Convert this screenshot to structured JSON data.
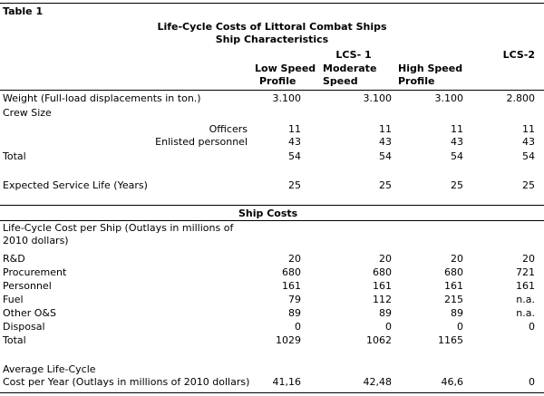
{
  "table_label": "Table 1",
  "title": "Life-Cycle Costs of Littoral Combat Ships",
  "section1_title": "Ship Characteristics",
  "header": {
    "lcs1": "LCS- 1",
    "lcs2": "LCS-2",
    "col1": [
      "Low Speed",
      "Profile"
    ],
    "col2": [
      "Moderate",
      "Speed"
    ],
    "col3": [
      "High Speed",
      "Profile"
    ]
  },
  "characteristics": {
    "weight": {
      "label": "Weight (Full-load displacements in ton.)",
      "values": [
        "3.100",
        "3.100",
        "3.100",
        "2.800"
      ]
    },
    "crew_size_label": "Crew Size",
    "officers": {
      "label": "Officers",
      "values": [
        "11",
        "11",
        "11",
        "11"
      ]
    },
    "enlisted": {
      "label": "Enlisted personnel",
      "values": [
        "43",
        "43",
        "43",
        "43"
      ]
    },
    "total": {
      "label": "Total",
      "values": [
        "54",
        "54",
        "54",
        "54"
      ]
    },
    "service_life": {
      "label": "Expected Service Life (Years)",
      "values": [
        "25",
        "25",
        "25",
        "25"
      ]
    }
  },
  "section2_title": "Ship Costs",
  "costs": {
    "intro": [
      "Life-Cycle Cost per Ship (Outlays in millions of",
      "2010 dollars)"
    ],
    "rows": [
      {
        "label": "R&D",
        "values": [
          "20",
          "20",
          "20",
          "20"
        ]
      },
      {
        "label": "Procurement",
        "values": [
          "680",
          "680",
          "680",
          "721"
        ]
      },
      {
        "label": "Personnel",
        "values": [
          "161",
          "161",
          "161",
          "161"
        ]
      },
      {
        "label": "Fuel",
        "values": [
          "79",
          "112",
          "215",
          "n.a."
        ]
      },
      {
        "label": "Other O&S",
        "values": [
          "89",
          "89",
          "89",
          "n.a."
        ]
      },
      {
        "label": "Disposal",
        "values": [
          "0",
          "0",
          "0",
          "0"
        ]
      },
      {
        "label": "Total",
        "values": [
          "1029",
          "1062",
          "1165",
          ""
        ]
      }
    ],
    "average": {
      "label": [
        "Average Life-Cycle",
        "Cost per Year (Outlays in millions of 2010 dollars)"
      ],
      "values": [
        "41,16",
        "42,48",
        "46,6",
        "0"
      ]
    }
  }
}
